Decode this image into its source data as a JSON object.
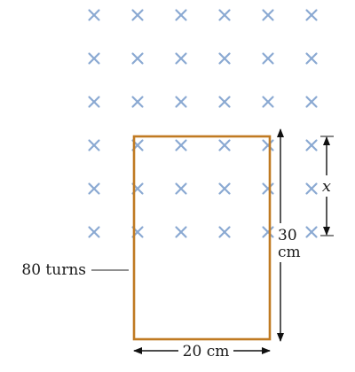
{
  "field": {
    "symbol": "×",
    "color": "#8aa9d2",
    "rows": 6,
    "cols": 6
  },
  "loop": {
    "color": "#c07a22",
    "turns_label": "80 turns",
    "height_label_top": "30",
    "height_label_bottom": "cm",
    "width_label": "20 cm"
  },
  "dimension": {
    "x_label": "x"
  }
}
